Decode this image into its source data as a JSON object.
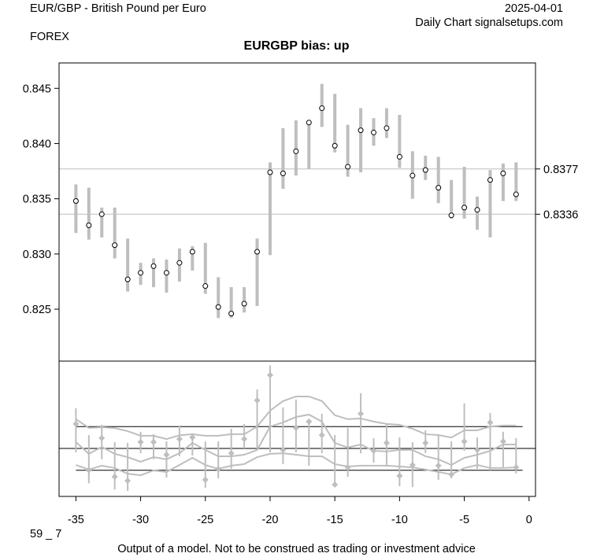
{
  "header": {
    "instrument": "EUR/GBP - British Pound per Euro",
    "category": "FOREX",
    "date": "2025-04-01",
    "source": "Daily Chart signalsetups.com"
  },
  "footer": {
    "code": "59 _ 7",
    "disclaimer": "Output of a model. Not to be construed as trading or investment advice"
  },
  "colors": {
    "bar": "#bebebe",
    "line": "#bebebe",
    "axis": "#000000"
  },
  "chart_data": [
    {
      "type": "line",
      "title": "EURGBP bias: up",
      "xlabel": "",
      "ylabel": "",
      "xlim": [
        -36.3,
        0.5
      ],
      "ylim": [
        0.8203,
        0.8473
      ],
      "xticks": [
        -35,
        -30,
        -25,
        -20,
        -15,
        -10,
        -5,
        0
      ],
      "xtick_labels": [
        "-35",
        "-30",
        "-25",
        "-20",
        "-15",
        "-10",
        "-5",
        "0"
      ],
      "yticks": [
        0.825,
        0.83,
        0.835,
        0.84,
        0.845
      ],
      "ytick_labels": [
        "0.825",
        "0.830",
        "0.835",
        "0.840",
        "0.845"
      ],
      "reference_lines": [
        {
          "value": 0.8377,
          "label": "0.8377"
        },
        {
          "value": 0.8336,
          "label": "0.8336"
        }
      ],
      "x": [
        -35,
        -34,
        -33,
        -32,
        -31,
        -30,
        -29,
        -28,
        -27,
        -26,
        -25,
        -24,
        -23,
        -22,
        -21,
        -20,
        -19,
        -18,
        -17,
        -16,
        -15,
        -14,
        -13,
        -12,
        -11,
        -10,
        -9,
        -8,
        -7,
        -6,
        -5,
        -4,
        -3,
        -2,
        -1
      ],
      "close": [
        0.8348,
        0.8326,
        0.8336,
        0.8308,
        0.8277,
        0.8283,
        0.8289,
        0.8283,
        0.8292,
        0.8302,
        0.8271,
        0.8252,
        0.8246,
        0.8255,
        0.8302,
        0.8374,
        0.8373,
        0.8393,
        0.8419,
        0.8432,
        0.8398,
        0.8379,
        0.8412,
        0.841,
        0.8414,
        0.8388,
        0.8371,
        0.8376,
        0.836,
        0.8335,
        0.8342,
        0.834,
        0.8367,
        0.8373,
        0.8354
      ],
      "high": [
        0.8363,
        0.836,
        0.8342,
        0.8342,
        0.8314,
        0.8292,
        0.8296,
        0.8295,
        0.8305,
        0.8307,
        0.831,
        0.8279,
        0.827,
        0.827,
        0.8314,
        0.8383,
        0.8414,
        0.8421,
        0.8421,
        0.8454,
        0.8445,
        0.8417,
        0.8432,
        0.8423,
        0.8432,
        0.8426,
        0.8393,
        0.8389,
        0.8388,
        0.8367,
        0.8379,
        0.8352,
        0.8376,
        0.8382,
        0.8383
      ],
      "low": [
        0.8319,
        0.8313,
        0.8315,
        0.8296,
        0.8266,
        0.8272,
        0.827,
        0.8265,
        0.8275,
        0.8285,
        0.8264,
        0.8242,
        0.8242,
        0.8247,
        0.8253,
        0.8299,
        0.8359,
        0.8371,
        0.8377,
        0.8415,
        0.8392,
        0.837,
        0.8374,
        0.8398,
        0.8405,
        0.8378,
        0.835,
        0.8367,
        0.8346,
        0.8332,
        0.8332,
        0.8322,
        0.8315,
        0.8348,
        0.8348
      ]
    },
    {
      "type": "line",
      "title": "",
      "ylim": [
        -2.2,
        4.0
      ],
      "reference_lines": [
        1,
        0,
        -1
      ],
      "x": [
        -35,
        -34,
        -33,
        -32,
        -31,
        -30,
        -29,
        -28,
        -27,
        -26,
        -25,
        -24,
        -23,
        -22,
        -21,
        -20,
        -19,
        -18,
        -17,
        -16,
        -15,
        -14,
        -13,
        -12,
        -11,
        -10,
        -9,
        -8,
        -7,
        -6,
        -5,
        -4,
        -3,
        -2,
        -1
      ],
      "point": [
        1.12,
        -1.0,
        0.47,
        -1.3,
        -1.48,
        0.29,
        0.29,
        -0.29,
        0.43,
        0.51,
        -1.44,
        -0.94,
        -0.22,
        0.43,
        2.2,
        3.36,
        -0.07,
        0.94,
        1.23,
        0.61,
        -1.66,
        -0.87,
        1.59,
        -0.11,
        0.25,
        -1.26,
        -0.76,
        0.25,
        -0.79,
        -1.19,
        0.32,
        -0.07,
        1.19,
        0.32,
        -0.87
      ],
      "high": [
        1.84,
        0.61,
        1.08,
        0.29,
        0.25,
        0.76,
        0.65,
        0.32,
        1.05,
        0.69,
        0.32,
        0.32,
        0.9,
        1.12,
        2.7,
        3.8,
        1.88,
        2.24,
        1.3,
        1.59,
        0.61,
        0.94,
        2.53,
        0.47,
        1.12,
        0.5,
        0.29,
        0.83,
        0.58,
        0.32,
        2.06,
        0.5,
        1.62,
        0.76,
        0.47
      ],
      "low": [
        -0.18,
        -1.6,
        -0.5,
        -1.88,
        -1.95,
        -0.22,
        -0.5,
        -1.34,
        -0.36,
        -0.32,
        -1.8,
        -1.37,
        -0.94,
        0,
        0,
        -0.18,
        -0.72,
        -0.18,
        -0.79,
        -0.22,
        -1.73,
        -1.3,
        -0.22,
        -0.65,
        -0.79,
        -1.73,
        -1.77,
        -0.22,
        -1.44,
        -1.37,
        -0.11,
        -0.94,
        -1.0,
        -0.9,
        -1.15
      ],
      "series": [
        {
          "name": "upper",
          "values": [
            1.34,
            0.94,
            0.97,
            0.93,
            0.79,
            0.58,
            0.58,
            0.43,
            0.6,
            0.65,
            0.58,
            0.58,
            0.65,
            0.65,
            1.0,
            1.73,
            2.17,
            2.38,
            2.38,
            2.17,
            1.52,
            1.34,
            1.37,
            1.23,
            1.12,
            1.08,
            0.9,
            0.65,
            0.61,
            0.5,
            0.83,
            0.83,
            1.0,
            1.05,
            1.05
          ]
        },
        {
          "name": "middle",
          "values": [
            0.29,
            -0.25,
            0.07,
            -0.25,
            -0.4,
            -0.61,
            -0.4,
            -0.5,
            -0.22,
            0.25,
            -0.07,
            -0.36,
            -0.36,
            -0.29,
            -0.07,
            1.0,
            1.19,
            1.44,
            1.55,
            1.23,
            0.25,
            0.04,
            0.18,
            -0.11,
            -0.14,
            -0.07,
            -0.07,
            -0.36,
            -0.5,
            -0.76,
            -0.43,
            -0.29,
            -0.11,
            0.18,
            0.18
          ]
        },
        {
          "name": "lower",
          "values": [
            -0.76,
            -0.97,
            -0.79,
            -0.9,
            -1.16,
            -1.23,
            -1.01,
            -1.08,
            -0.76,
            -0.43,
            -0.76,
            -0.94,
            -0.79,
            -0.72,
            -0.4,
            -0.25,
            -0.22,
            -0.29,
            -0.36,
            -0.36,
            -0.72,
            -0.83,
            -0.79,
            -0.79,
            -0.79,
            -0.83,
            -0.87,
            -0.97,
            -1.08,
            -1.19,
            -0.9,
            -0.76,
            -0.9,
            -0.9,
            -0.87
          ]
        }
      ]
    }
  ]
}
